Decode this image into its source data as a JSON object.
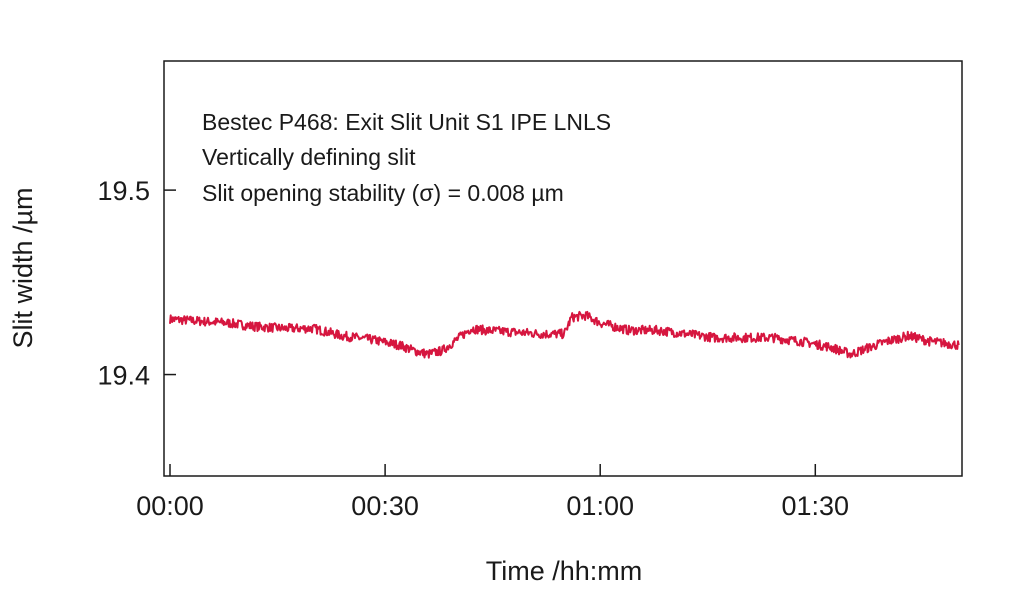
{
  "chart_data": {
    "type": "line",
    "xlabel": "Time /hh:mm",
    "ylabel": "Slit width /µm",
    "x_unit": "hh:mm",
    "xlim": [
      "00:00",
      "01:50"
    ],
    "ylim": [
      19.345,
      19.57
    ],
    "x_ticks": [
      "00:00",
      "00:30",
      "01:00",
      "01:30"
    ],
    "y_ticks": [
      "19.4",
      "19.5"
    ],
    "grid": false,
    "annotations": [
      "Bestec P468: Exit Slit Unit S1 IPE LNLS",
      "Vertically defining slit",
      "Slit opening stability (σ) = 0.008 µm"
    ],
    "series": [
      {
        "color": "#d6163f",
        "x": [
          "00:00",
          "00:04",
          "00:08",
          "00:12",
          "00:16",
          "00:20",
          "00:24",
          "00:28",
          "00:32",
          "00:34",
          "00:36",
          "00:38",
          "00:40",
          "00:42",
          "00:44",
          "00:48",
          "00:52",
          "00:55",
          "00:56",
          "00:58",
          "01:00",
          "01:02",
          "01:04",
          "01:08",
          "01:12",
          "01:16",
          "01:20",
          "01:24",
          "01:28",
          "01:32",
          "01:35",
          "01:37",
          "01:40",
          "01:43",
          "01:46",
          "01:50"
        ],
        "y": [
          19.43,
          19.429,
          19.428,
          19.426,
          19.425,
          19.425,
          19.421,
          19.419,
          19.416,
          19.413,
          19.411,
          19.413,
          19.419,
          19.425,
          19.424,
          19.423,
          19.422,
          19.422,
          19.431,
          19.432,
          19.428,
          19.426,
          19.424,
          19.424,
          19.422,
          19.42,
          19.42,
          19.42,
          19.418,
          19.415,
          19.411,
          19.414,
          19.418,
          19.421,
          19.418,
          19.416
        ]
      }
    ]
  }
}
